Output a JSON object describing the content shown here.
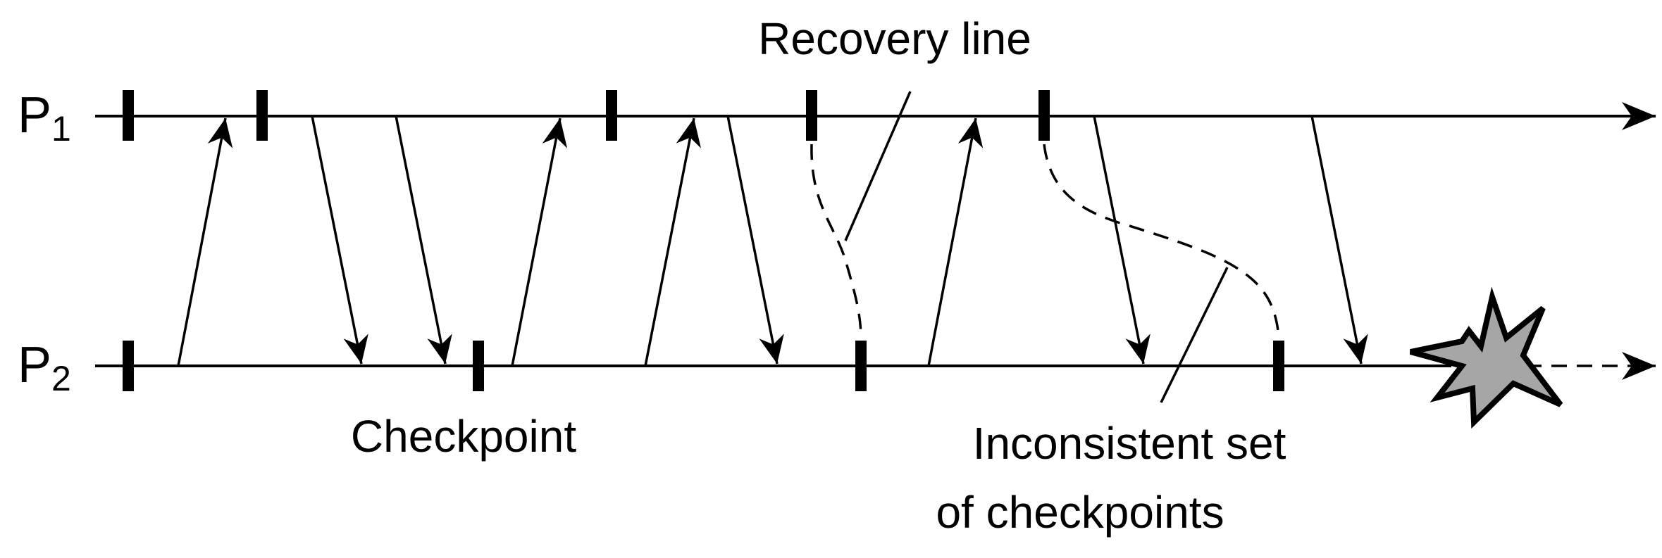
{
  "processes": [
    {
      "name": "P",
      "subscript": "1"
    },
    {
      "name": "P",
      "subscript": "2"
    }
  ],
  "labels": {
    "recovery_line": "Recovery line",
    "checkpoint": "Checkpoint",
    "inconsistent_line1": "Inconsistent set",
    "inconsistent_line2": "of checkpoints"
  },
  "colors": {
    "line": "#000000",
    "crash_fill": "#a6a6a6"
  },
  "icons": {
    "crash": "crash-explosion-icon"
  }
}
